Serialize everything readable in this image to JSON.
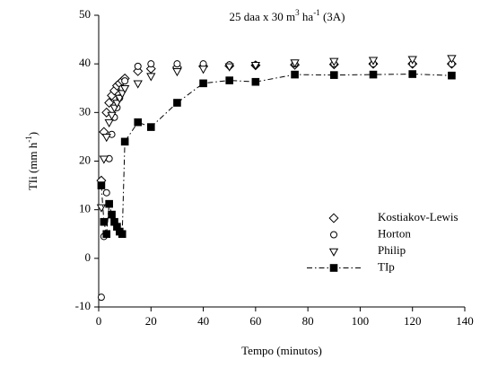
{
  "chart_data": {
    "type": "scatter",
    "title": [
      {
        "text": "25 daa x 30 m"
      },
      {
        "text": "3",
        "sup": true
      },
      {
        "text": " ha"
      },
      {
        "text": "-1",
        "sup": true
      },
      {
        "text": " (3A)"
      }
    ],
    "xlabel": "Tempo (minutos)",
    "ylabel": [
      {
        "text": "TIi (mm h"
      },
      {
        "text": "-1",
        "sup": true
      },
      {
        "text": ")"
      }
    ],
    "x": [
      1,
      2,
      3,
      4,
      5,
      6,
      7,
      8,
      9,
      10,
      15,
      20,
      30,
      40,
      50,
      60,
      75,
      90,
      105,
      120,
      135
    ],
    "series": [
      {
        "name": "Kostiakov-Lewis",
        "color": "#000000",
        "marker": "diamond",
        "filled": false,
        "line": null,
        "values": [
          16,
          26,
          30,
          32,
          33.5,
          34.5,
          35.5,
          36,
          36.5,
          37,
          38.5,
          39,
          39.3,
          39.5,
          39.6,
          39.7,
          39.8,
          39.9,
          40,
          40,
          40
        ]
      },
      {
        "name": "Horton",
        "color": "#000000",
        "marker": "circle",
        "filled": false,
        "line": null,
        "values": [
          -8,
          4.5,
          13.5,
          20.5,
          25.5,
          29,
          31,
          33,
          35,
          36.5,
          39.5,
          40,
          40,
          40,
          39.8,
          39.8,
          40,
          40,
          40,
          40,
          40
        ]
      },
      {
        "name": "Philip",
        "color": "#000000",
        "marker": "triangle-down",
        "filled": false,
        "line": null,
        "values": [
          10.5,
          20.5,
          25,
          28,
          29.5,
          31,
          32,
          33,
          34,
          35,
          36,
          37.5,
          38.5,
          39,
          39.5,
          39.8,
          40.3,
          40.6,
          40.8,
          41,
          41.2
        ]
      },
      {
        "name": "TIp",
        "color": "#000000",
        "marker": "square",
        "filled": true,
        "line": "dashdot",
        "values": [
          15,
          7.5,
          5,
          11.2,
          9,
          7.5,
          6.5,
          5.5,
          5,
          24,
          28,
          27,
          32,
          36,
          36.6,
          36.3,
          37.8,
          37.7,
          37.8,
          37.9,
          37.6
        ]
      }
    ],
    "xlim": [
      0,
      140
    ],
    "xticks": [
      0,
      20,
      40,
      60,
      80,
      100,
      120,
      140
    ],
    "ylim": [
      -10,
      50
    ],
    "yticks": [
      -10,
      0,
      10,
      20,
      30,
      40,
      50
    ],
    "grid": false,
    "legend": "lower right"
  }
}
